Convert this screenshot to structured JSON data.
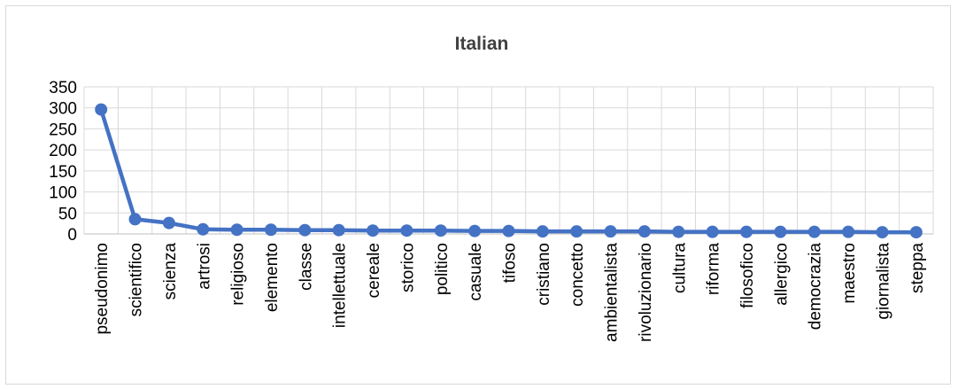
{
  "chart_data": {
    "type": "line",
    "title": "Italian",
    "xlabel": "",
    "ylabel": "",
    "ylim": [
      0,
      350
    ],
    "yticks": [
      0,
      50,
      100,
      150,
      200,
      250,
      300,
      350
    ],
    "grid": true,
    "legend": "none",
    "categories": [
      "pseudonimo",
      "scientifico",
      "scienza",
      "artrosi",
      "religioso",
      "elemento",
      "classe",
      "intellettuale",
      "cereale",
      "storico",
      "politico",
      "casuale",
      "tifoso",
      "cristiano",
      "concetto",
      "ambientalista",
      "rivoluzionario",
      "cultura",
      "riforma",
      "filosofico",
      "allergico",
      "democrazia",
      "maestro",
      "giornalista",
      "steppa"
    ],
    "series": [
      {
        "color": "#4472c4",
        "values": [
          296,
          35,
          26,
          11,
          10,
          10,
          9,
          9,
          8,
          8,
          8,
          7,
          7,
          6,
          6,
          6,
          6,
          5,
          5,
          5,
          5,
          5,
          5,
          4,
          4
        ]
      }
    ]
  }
}
